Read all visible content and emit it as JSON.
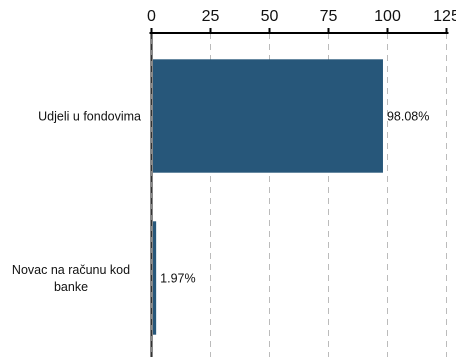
{
  "chart_data": {
    "type": "bar",
    "orientation": "horizontal",
    "title": "",
    "xlabel": "",
    "ylabel": "",
    "categories": [
      "Udjeli u fondovima",
      "Novac na računu kod banke"
    ],
    "category_lines": [
      [
        "Udjeli u fondovima"
      ],
      [
        "Novac na računu kod",
        "banke"
      ]
    ],
    "values": [
      98.08,
      1.97
    ],
    "data_labels": [
      "98.08%",
      "1.97%"
    ],
    "xlim": [
      0,
      125
    ],
    "xticks": [
      0,
      25,
      50,
      75,
      100,
      125
    ],
    "xtick_labels": [
      "0",
      "25",
      "50",
      "75",
      "100",
      "125"
    ],
    "x_axis_position": "top",
    "grid": "vertical-dashed",
    "legend": "none",
    "bar_color": "#27577a",
    "grid_color": "#bbbbbb",
    "axis_color": "#000000",
    "zero_line_color": "#888888"
  }
}
